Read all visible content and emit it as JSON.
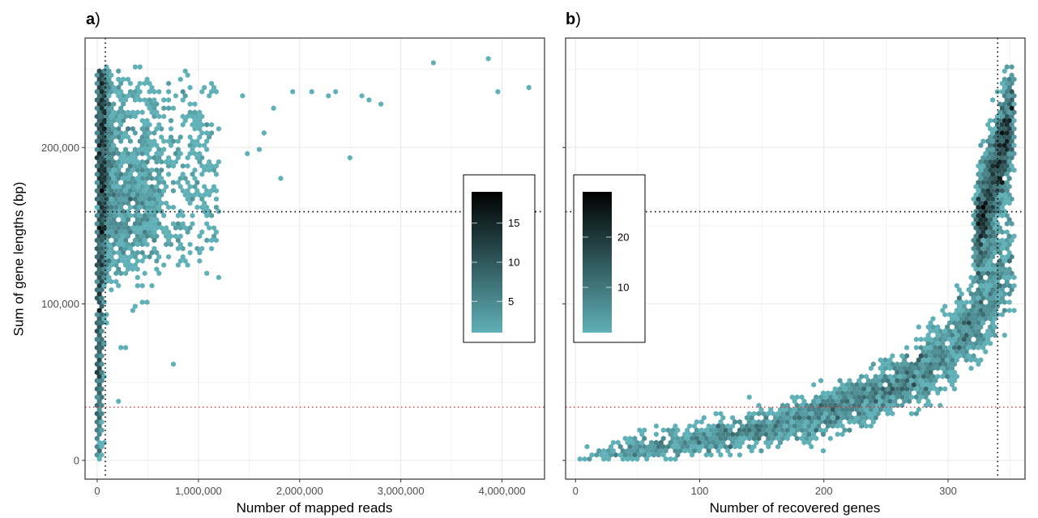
{
  "colors": {
    "low": "#5fb0b7",
    "high": "#000000",
    "grid": "#ebebeb",
    "threshold_red": "#e0313a",
    "threshold_black": "#000000"
  },
  "shared_ylabel": "Sum of gene lengths (bp)",
  "chart_data": [
    {
      "type": "hexbin",
      "panel_letter": "a",
      "panel_suffix": ")",
      "xlabel": "Number of mapped reads",
      "ylabel": "Sum of gene lengths (bp)",
      "xlim": [
        -120000,
        4420000
      ],
      "ylim": [
        -12000,
        270000
      ],
      "xticks": [
        0,
        1000000,
        2000000,
        3000000,
        4000000
      ],
      "xtick_labels": [
        "0",
        "1,000,000",
        "2,000,000",
        "3,000,000",
        "4,000,000"
      ],
      "yticks": [
        0,
        100000,
        200000
      ],
      "ytick_labels": [
        "0",
        "100,000",
        "200,000"
      ],
      "vline": 80000,
      "hline_black": 159000,
      "hline_red": 34000,
      "legend": {
        "position": "right-inside",
        "ticks": [
          5,
          10,
          15
        ],
        "tick_labels": [
          "5",
          "10",
          "15"
        ],
        "min": 1,
        "max": 19
      },
      "outliers": [
        [
          3300000,
          253000
        ],
        [
          3850000,
          258000
        ],
        [
          4250000,
          238000
        ],
        [
          3980000,
          236000
        ],
        [
          2520000,
          193000
        ],
        [
          2600000,
          233000
        ],
        [
          2700000,
          230000
        ],
        [
          2800000,
          227000
        ],
        [
          2350000,
          235000
        ],
        [
          2300000,
          232000
        ],
        [
          2100000,
          236000
        ],
        [
          1830000,
          180000
        ],
        [
          1950000,
          236000
        ],
        [
          750000,
          62000
        ],
        [
          500000,
          102000
        ],
        [
          200000,
          38000
        ],
        [
          230000,
          72000
        ],
        [
          300000,
          71000
        ],
        [
          1200000,
          160000
        ],
        [
          1600000,
          200000
        ],
        [
          1500000,
          195000
        ],
        [
          1650000,
          208000
        ],
        [
          1760000,
          225000
        ],
        [
          1450000,
          232000
        ]
      ]
    },
    {
      "type": "hexbin",
      "panel_letter": "b",
      "panel_suffix": ")",
      "xlabel": "Number of recovered genes",
      "ylabel": "",
      "xlim": [
        -8,
        362
      ],
      "ylim": [
        -12000,
        270000
      ],
      "xticks": [
        0,
        100,
        200,
        300
      ],
      "xtick_labels": [
        "0",
        "100",
        "200",
        "300"
      ],
      "yticks": [
        0,
        100000,
        200000
      ],
      "ytick_labels": [
        "",
        "",
        ""
      ],
      "vline": 340,
      "hline_black": 159000,
      "hline_red": 34000,
      "legend": {
        "position": "left-inside",
        "ticks": [
          10,
          20
        ],
        "tick_labels": [
          "10",
          "20"
        ],
        "min": 1,
        "max": 29
      }
    }
  ]
}
